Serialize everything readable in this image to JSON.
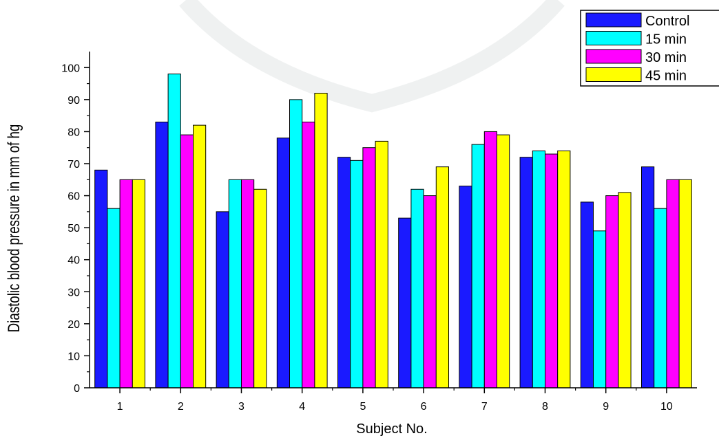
{
  "chart_data": {
    "type": "bar",
    "title": "",
    "xlabel": "Subject No.",
    "ylabel": "Diastolic blood pressure in mm of hg",
    "categories": [
      "1",
      "2",
      "3",
      "4",
      "5",
      "6",
      "7",
      "8",
      "9",
      "10"
    ],
    "ylim": [
      0,
      105
    ],
    "yticks": [
      0,
      10,
      20,
      30,
      40,
      50,
      60,
      70,
      80,
      90,
      100
    ],
    "grid": false,
    "legend_position": "top-right",
    "series": [
      {
        "name": "Control",
        "color": "#1a1aff",
        "values": [
          68,
          83,
          55,
          78,
          72,
          53,
          63,
          72,
          58,
          69
        ]
      },
      {
        "name": "15 min",
        "color": "#00ffff",
        "values": [
          56,
          98,
          65,
          90,
          71,
          62,
          76,
          74,
          49,
          56
        ]
      },
      {
        "name": "30 min",
        "color": "#ff00ff",
        "values": [
          65,
          79,
          65,
          83,
          75,
          60,
          80,
          73,
          60,
          65
        ]
      },
      {
        "name": "45 min",
        "color": "#ffff00",
        "values": [
          65,
          82,
          62,
          92,
          77,
          69,
          79,
          74,
          61,
          65
        ]
      }
    ]
  }
}
